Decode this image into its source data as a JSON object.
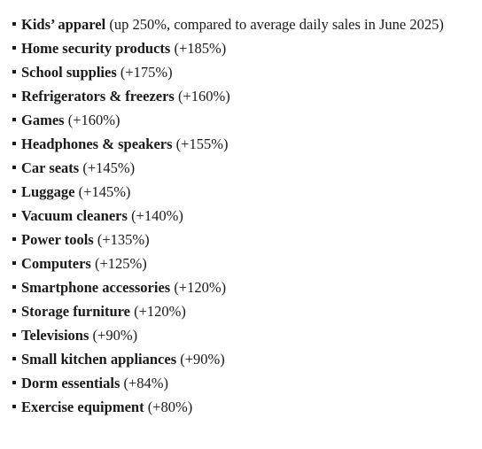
{
  "items": [
    {
      "name": "Kids’ apparel",
      "note": "(up 250%, compared to average daily sales in June 2025)"
    },
    {
      "name": "Home security products",
      "note": "(+185%)"
    },
    {
      "name": "School supplies",
      "note": "(+175%)"
    },
    {
      "name": "Refrigerators & freezers",
      "note": "(+160%)"
    },
    {
      "name": "Games",
      "note": "(+160%)"
    },
    {
      "name": "Headphones & speakers",
      "note": "(+155%)"
    },
    {
      "name": "Car seats",
      "note": "(+145%)"
    },
    {
      "name": "Luggage",
      "note": "(+145%)"
    },
    {
      "name": "Vacuum cleaners",
      "note": "(+140%)"
    },
    {
      "name": "Power tools",
      "note": "(+135%)"
    },
    {
      "name": "Computers",
      "note": "(+125%)"
    },
    {
      "name": "Smartphone accessories",
      "note": "(+120%)"
    },
    {
      "name": "Storage furniture",
      "note": "(+120%)"
    },
    {
      "name": "Televisions",
      "note": "(+90%)"
    },
    {
      "name": "Small kitchen appliances",
      "note": "(+90%)"
    },
    {
      "name": "Dorm essentials",
      "note": "(+84%)"
    },
    {
      "name": "Exercise equipment",
      "note": "(+80%)"
    }
  ]
}
